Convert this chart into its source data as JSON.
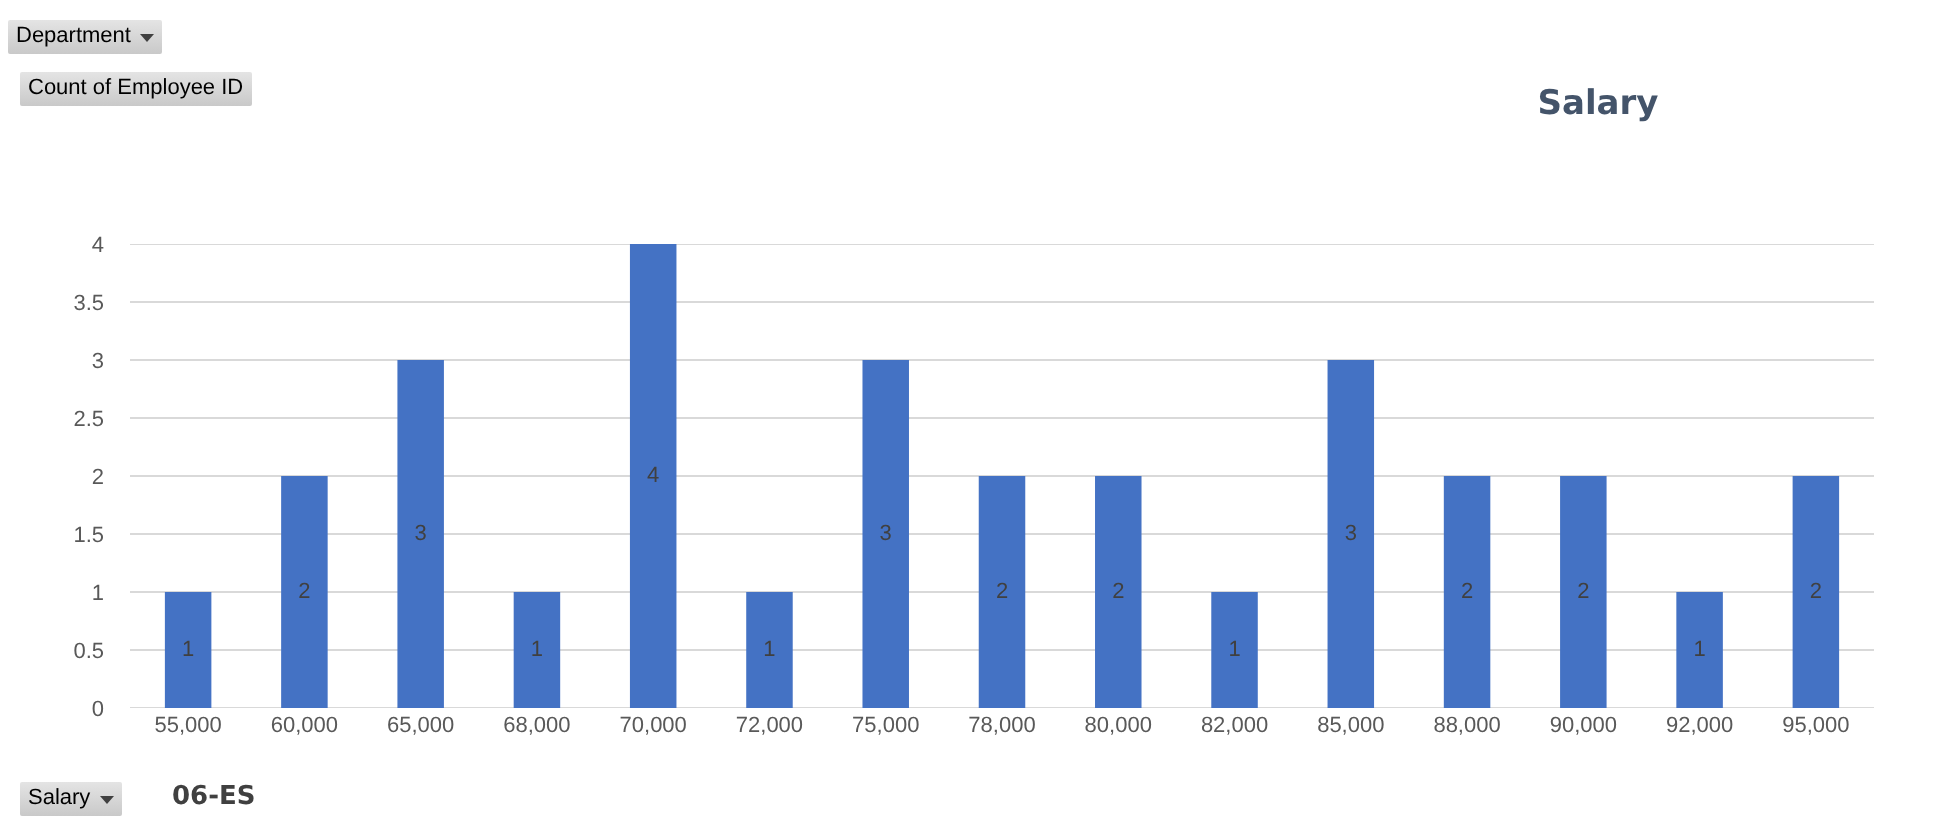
{
  "chart_data": {
    "type": "bar",
    "title": "Salary",
    "xlabel": "Salary",
    "annotations": [
      "Department",
      "Count of Employee ID",
      "06-ES"
    ],
    "categories": [
      "55,000",
      "60,000",
      "65,000",
      "68,000",
      "70,000",
      "72,000",
      "75,000",
      "78,000",
      "80,000",
      "82,000",
      "85,000",
      "88,000",
      "90,000",
      "92,000",
      "95,000"
    ],
    "values": [
      1,
      2,
      3,
      1,
      4,
      1,
      3,
      2,
      2,
      1,
      3,
      2,
      2,
      1,
      2
    ],
    "color": "#4472c4",
    "ylim": [
      0,
      4
    ],
    "yticks": [
      0,
      0.5,
      1,
      1.5,
      2,
      2.5,
      3,
      3.5,
      4
    ],
    "grid": "y",
    "data_labels": true
  }
}
